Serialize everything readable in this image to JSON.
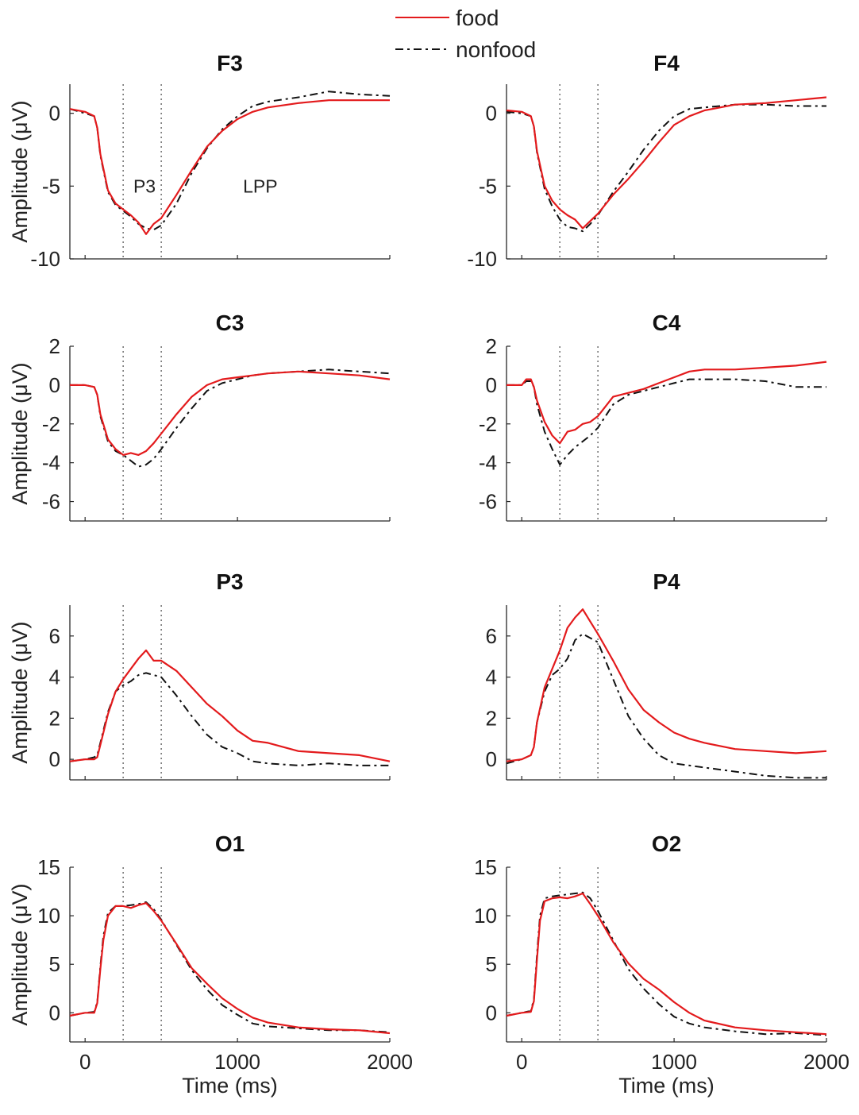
{
  "legend": {
    "position": "top-center",
    "entries": [
      {
        "label": "food",
        "color": "#e31a1c",
        "style": "solid"
      },
      {
        "label": "nonfood",
        "color": "#111111",
        "style": "dashdot"
      }
    ]
  },
  "colors": {
    "food": "#e31a1c",
    "nonfood": "#111111",
    "marker_lines": "#777777"
  },
  "chart_data": [
    {
      "type": "line",
      "title": "F3",
      "xlabel": "",
      "ylabel": "Amplitude (μV)",
      "xlim": [
        -100,
        2000
      ],
      "ylim": [
        -10,
        2
      ],
      "yticks": [
        0,
        -5,
        -10
      ],
      "xticks": [
        0,
        1000,
        2000
      ],
      "markers": [
        250,
        500
      ],
      "annotations": [
        {
          "text": "P3",
          "x": 390,
          "y": -5
        },
        {
          "text": "LPP",
          "x": 1150,
          "y": -5
        }
      ],
      "series": [
        {
          "name": "food",
          "x": [
            -100,
            0,
            60,
            80,
            100,
            150,
            200,
            250,
            300,
            350,
            400,
            450,
            500,
            600,
            700,
            800,
            900,
            1000,
            1100,
            1200,
            1400,
            1600,
            1800,
            2000
          ],
          "values": [
            0.3,
            0.1,
            -0.2,
            -1.0,
            -2.8,
            -5.3,
            -6.2,
            -6.6,
            -7.0,
            -7.5,
            -8.3,
            -7.6,
            -7.2,
            -5.6,
            -3.9,
            -2.3,
            -1.2,
            -0.4,
            0.1,
            0.4,
            0.7,
            0.9,
            0.9,
            0.9
          ]
        },
        {
          "name": "nonfood",
          "x": [
            -100,
            0,
            60,
            80,
            100,
            150,
            200,
            250,
            300,
            350,
            400,
            450,
            500,
            600,
            700,
            800,
            900,
            1000,
            1100,
            1200,
            1400,
            1600,
            1800,
            2000
          ],
          "values": [
            0.3,
            0.0,
            -0.2,
            -1.0,
            -2.9,
            -5.4,
            -6.3,
            -6.7,
            -7.1,
            -7.6,
            -7.9,
            -8.0,
            -7.7,
            -6.2,
            -4.1,
            -2.4,
            -1.1,
            -0.2,
            0.5,
            0.8,
            1.1,
            1.5,
            1.3,
            1.2
          ]
        }
      ]
    },
    {
      "type": "line",
      "title": "F4",
      "xlabel": "",
      "ylabel": "",
      "xlim": [
        -100,
        2000
      ],
      "ylim": [
        -10,
        2
      ],
      "yticks": [
        0,
        -5,
        -10
      ],
      "xticks": [
        0,
        1000,
        2000
      ],
      "markers": [
        250,
        500
      ],
      "series": [
        {
          "name": "food",
          "x": [
            -100,
            0,
            60,
            80,
            100,
            150,
            200,
            250,
            300,
            350,
            400,
            450,
            500,
            600,
            700,
            800,
            900,
            1000,
            1100,
            1200,
            1400,
            1600,
            1800,
            2000
          ],
          "values": [
            0.2,
            0.1,
            -0.2,
            -0.9,
            -2.6,
            -5.0,
            -6.0,
            -6.6,
            -7.0,
            -7.3,
            -7.9,
            -7.4,
            -6.9,
            -5.6,
            -4.5,
            -3.3,
            -2.0,
            -0.8,
            -0.2,
            0.2,
            0.6,
            0.7,
            0.9,
            1.1
          ]
        },
        {
          "name": "nonfood",
          "x": [
            -100,
            0,
            60,
            80,
            100,
            150,
            200,
            250,
            300,
            350,
            400,
            450,
            500,
            600,
            700,
            800,
            900,
            1000,
            1100,
            1200,
            1400,
            1600,
            1800,
            2000
          ],
          "values": [
            0.1,
            0.0,
            -0.2,
            -0.9,
            -2.7,
            -5.2,
            -6.4,
            -7.3,
            -7.8,
            -7.9,
            -8.1,
            -7.6,
            -7.0,
            -5.4,
            -4.0,
            -2.5,
            -1.2,
            -0.2,
            0.3,
            0.4,
            0.6,
            0.6,
            0.5,
            0.5
          ]
        }
      ]
    },
    {
      "type": "line",
      "title": "C3",
      "xlabel": "",
      "ylabel": "Amplitude (μV)",
      "xlim": [
        -100,
        2000
      ],
      "ylim": [
        -7,
        2
      ],
      "yticks": [
        2,
        0,
        -2,
        -4,
        -6
      ],
      "xticks": [
        0,
        1000,
        2000
      ],
      "markers": [
        250,
        500
      ],
      "series": [
        {
          "name": "food",
          "x": [
            -100,
            0,
            60,
            80,
            100,
            150,
            200,
            250,
            300,
            350,
            400,
            450,
            500,
            600,
            700,
            800,
            900,
            1000,
            1100,
            1200,
            1400,
            1600,
            1800,
            2000
          ],
          "values": [
            0.0,
            0.0,
            -0.1,
            -0.5,
            -1.5,
            -2.8,
            -3.3,
            -3.6,
            -3.5,
            -3.6,
            -3.4,
            -3.0,
            -2.5,
            -1.5,
            -0.6,
            0.0,
            0.3,
            0.4,
            0.5,
            0.6,
            0.7,
            0.6,
            0.5,
            0.3
          ]
        },
        {
          "name": "nonfood",
          "x": [
            -100,
            0,
            60,
            80,
            100,
            150,
            200,
            250,
            300,
            350,
            400,
            450,
            500,
            600,
            700,
            800,
            900,
            1000,
            1100,
            1200,
            1400,
            1600,
            1800,
            2000
          ],
          "values": [
            0.0,
            0.0,
            -0.1,
            -0.5,
            -1.6,
            -2.9,
            -3.4,
            -3.6,
            -3.9,
            -4.2,
            -4.1,
            -3.8,
            -3.3,
            -2.2,
            -1.2,
            -0.3,
            0.1,
            0.3,
            0.5,
            0.6,
            0.7,
            0.8,
            0.7,
            0.6
          ]
        }
      ]
    },
    {
      "type": "line",
      "title": "C4",
      "xlabel": "",
      "ylabel": "",
      "xlim": [
        -100,
        2000
      ],
      "ylim": [
        -7,
        2
      ],
      "yticks": [
        2,
        0,
        -2,
        -4,
        -6
      ],
      "xticks": [
        0,
        1000,
        2000
      ],
      "markers": [
        250,
        500
      ],
      "series": [
        {
          "name": "food",
          "x": [
            -100,
            0,
            30,
            60,
            80,
            100,
            150,
            200,
            250,
            300,
            350,
            400,
            450,
            500,
            600,
            700,
            800,
            900,
            1000,
            1100,
            1200,
            1400,
            1600,
            1800,
            2000
          ],
          "values": [
            0.0,
            0.0,
            0.3,
            0.3,
            -0.1,
            -0.8,
            -1.9,
            -2.6,
            -3.0,
            -2.4,
            -2.3,
            -2.0,
            -1.9,
            -1.6,
            -0.6,
            -0.4,
            -0.2,
            0.1,
            0.4,
            0.7,
            0.8,
            0.8,
            0.9,
            1.0,
            1.2
          ]
        },
        {
          "name": "nonfood",
          "x": [
            -100,
            0,
            30,
            60,
            80,
            100,
            150,
            200,
            250,
            300,
            350,
            400,
            450,
            500,
            600,
            700,
            800,
            900,
            1000,
            1100,
            1200,
            1400,
            1600,
            1800,
            2000
          ],
          "values": [
            0.0,
            0.0,
            0.2,
            0.2,
            -0.1,
            -1.0,
            -2.4,
            -3.3,
            -4.1,
            -3.6,
            -3.2,
            -2.9,
            -2.6,
            -2.2,
            -1.0,
            -0.5,
            -0.3,
            -0.1,
            0.1,
            0.3,
            0.3,
            0.3,
            0.2,
            -0.1,
            -0.1
          ]
        }
      ]
    },
    {
      "type": "line",
      "title": "P3",
      "xlabel": "",
      "ylabel": "Amplitude (μV)",
      "xlim": [
        -100,
        2000
      ],
      "ylim": [
        -1,
        7.5
      ],
      "yticks": [
        0,
        2,
        4,
        6
      ],
      "xticks": [
        0,
        1000,
        2000
      ],
      "markers": [
        250,
        500
      ],
      "series": [
        {
          "name": "food",
          "x": [
            -100,
            0,
            60,
            80,
            100,
            150,
            200,
            250,
            300,
            350,
            400,
            450,
            500,
            600,
            700,
            800,
            900,
            1000,
            1100,
            1200,
            1400,
            1600,
            1800,
            2000
          ],
          "values": [
            -0.1,
            0.0,
            0.0,
            0.1,
            0.7,
            2.2,
            3.3,
            3.9,
            4.4,
            4.9,
            5.3,
            4.8,
            4.8,
            4.3,
            3.5,
            2.7,
            2.1,
            1.4,
            0.9,
            0.8,
            0.4,
            0.3,
            0.2,
            -0.1
          ]
        },
        {
          "name": "nonfood",
          "x": [
            -100,
            0,
            60,
            80,
            100,
            150,
            200,
            250,
            300,
            350,
            400,
            450,
            500,
            600,
            700,
            800,
            900,
            1000,
            1100,
            1200,
            1400,
            1600,
            1800,
            2000
          ],
          "values": [
            -0.1,
            0.0,
            0.1,
            0.2,
            0.8,
            2.3,
            3.3,
            3.6,
            3.8,
            4.1,
            4.2,
            4.1,
            4.0,
            3.1,
            2.1,
            1.2,
            0.6,
            0.3,
            -0.1,
            -0.2,
            -0.3,
            -0.2,
            -0.3,
            -0.3
          ]
        }
      ]
    },
    {
      "type": "line",
      "title": "P4",
      "xlabel": "",
      "ylabel": "",
      "xlim": [
        -100,
        2000
      ],
      "ylim": [
        -1,
        7.5
      ],
      "yticks": [
        0,
        2,
        4,
        6
      ],
      "xticks": [
        0,
        1000,
        2000
      ],
      "markers": [
        250,
        500
      ],
      "series": [
        {
          "name": "food",
          "x": [
            -100,
            0,
            60,
            80,
            100,
            150,
            200,
            250,
            300,
            350,
            400,
            450,
            500,
            600,
            700,
            800,
            900,
            1000,
            1100,
            1200,
            1400,
            1600,
            1800,
            2000
          ],
          "values": [
            -0.1,
            0.0,
            0.2,
            0.6,
            1.8,
            3.5,
            4.4,
            5.3,
            6.4,
            6.9,
            7.3,
            6.7,
            6.1,
            4.8,
            3.4,
            2.4,
            1.8,
            1.3,
            1.0,
            0.8,
            0.5,
            0.4,
            0.3,
            0.4
          ]
        },
        {
          "name": "nonfood",
          "x": [
            -100,
            0,
            60,
            80,
            100,
            150,
            200,
            250,
            300,
            350,
            400,
            450,
            500,
            600,
            700,
            800,
            900,
            1000,
            1100,
            1200,
            1400,
            1600,
            1800,
            2000
          ],
          "values": [
            -0.2,
            0.0,
            0.2,
            0.6,
            1.8,
            3.3,
            4.1,
            4.4,
            4.9,
            5.8,
            6.1,
            5.9,
            5.7,
            3.9,
            2.1,
            1.0,
            0.2,
            -0.2,
            -0.3,
            -0.4,
            -0.6,
            -0.8,
            -0.9,
            -0.9
          ]
        }
      ]
    },
    {
      "type": "line",
      "title": "O1",
      "xlabel": "Time (ms)",
      "ylabel": "Amplitude (μV)",
      "xlim": [
        -100,
        2000
      ],
      "ylim": [
        -3,
        15
      ],
      "yticks": [
        0,
        5,
        10,
        15
      ],
      "xticks": [
        0,
        1000,
        2000
      ],
      "markers": [
        250,
        500
      ],
      "series": [
        {
          "name": "food",
          "x": [
            -100,
            0,
            60,
            80,
            100,
            120,
            150,
            200,
            250,
            300,
            350,
            400,
            450,
            500,
            600,
            700,
            800,
            900,
            1000,
            1100,
            1200,
            1400,
            1600,
            1800,
            2000
          ],
          "values": [
            -0.3,
            0.0,
            0.0,
            1.0,
            4.5,
            7.5,
            10.0,
            11.0,
            11.0,
            10.8,
            11.1,
            11.3,
            10.5,
            9.5,
            7.1,
            4.6,
            3.0,
            1.5,
            0.4,
            -0.5,
            -1.0,
            -1.5,
            -1.7,
            -1.8,
            -2.1
          ]
        },
        {
          "name": "nonfood",
          "x": [
            -100,
            0,
            60,
            80,
            100,
            120,
            150,
            200,
            250,
            300,
            350,
            400,
            450,
            500,
            600,
            700,
            800,
            900,
            1000,
            1100,
            1200,
            1400,
            1600,
            1800,
            2000
          ],
          "values": [
            -0.3,
            0.0,
            0.1,
            1.1,
            4.8,
            7.9,
            10.3,
            11.0,
            11.0,
            11.1,
            11.2,
            11.4,
            10.7,
            9.6,
            7.0,
            4.4,
            2.4,
            0.8,
            -0.2,
            -1.1,
            -1.4,
            -1.6,
            -1.8,
            -1.8,
            -2.0
          ]
        }
      ]
    },
    {
      "type": "line",
      "title": "O2",
      "xlabel": "Time (ms)",
      "ylabel": "",
      "xlim": [
        -100,
        2000
      ],
      "ylim": [
        -3,
        15
      ],
      "yticks": [
        0,
        5,
        10,
        15
      ],
      "xticks": [
        0,
        1000,
        2000
      ],
      "markers": [
        250,
        500
      ],
      "series": [
        {
          "name": "food",
          "x": [
            -100,
            0,
            60,
            80,
            100,
            120,
            150,
            200,
            250,
            300,
            350,
            400,
            450,
            500,
            600,
            700,
            800,
            900,
            1000,
            1100,
            1200,
            1400,
            1600,
            1800,
            2000
          ],
          "values": [
            -0.3,
            0.0,
            0.1,
            1.2,
            5.5,
            9.5,
            11.5,
            11.8,
            11.9,
            11.8,
            12.0,
            12.3,
            11.2,
            10.0,
            7.3,
            5.1,
            3.5,
            2.4,
            1.1,
            0.0,
            -0.8,
            -1.5,
            -1.8,
            -2.0,
            -2.2
          ]
        },
        {
          "name": "nonfood",
          "x": [
            -100,
            0,
            60,
            80,
            100,
            120,
            150,
            200,
            250,
            300,
            350,
            400,
            450,
            500,
            600,
            700,
            800,
            900,
            1000,
            1100,
            1200,
            1400,
            1600,
            1800,
            2000
          ],
          "values": [
            -0.3,
            0.0,
            0.2,
            1.4,
            6.0,
            10.0,
            11.8,
            12.0,
            12.1,
            12.2,
            12.3,
            12.4,
            11.8,
            10.5,
            7.5,
            4.5,
            2.5,
            0.9,
            -0.4,
            -1.1,
            -1.5,
            -1.9,
            -2.2,
            -2.1,
            -2.3
          ]
        }
      ]
    }
  ]
}
